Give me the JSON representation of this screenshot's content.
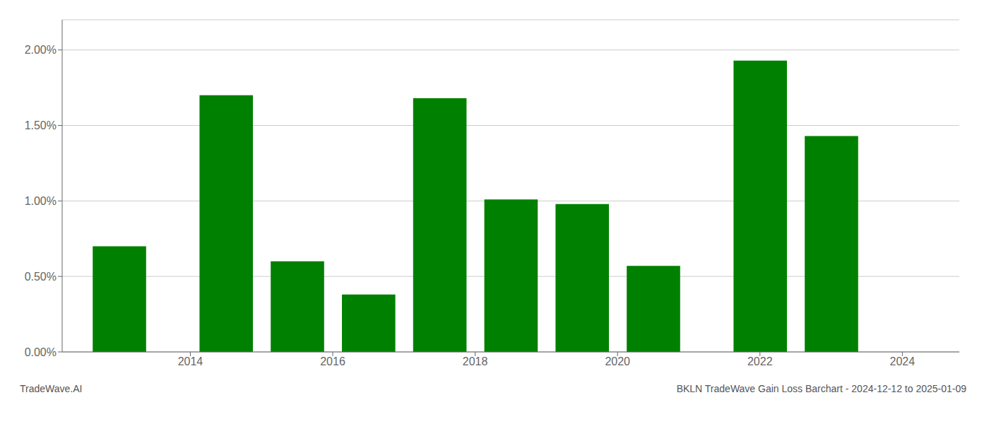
{
  "chart_data": {
    "type": "bar",
    "title": "BKLN TradeWave Gain Loss Barchart - 2024-12-12 to 2025-01-09",
    "annotations": [
      "TradeWave.AI"
    ],
    "x": [
      2013.0,
      2014.5,
      2015.5,
      2016.5,
      2017.5,
      2018.5,
      2019.5,
      2020.5,
      2022.0,
      2023.0
    ],
    "values": [
      0.007,
      0.017,
      0.006,
      0.0038,
      0.0168,
      0.0101,
      0.0098,
      0.0057,
      0.0193,
      0.0143
    ],
    "color": "#008000",
    "xlim": [
      2012.2,
      2024.8
    ],
    "xticks": [
      2014,
      2016,
      2018,
      2020,
      2022,
      2024
    ],
    "ylim": [
      0,
      0.022
    ],
    "yticks": [
      {
        "value": 0.0,
        "label": "0.00%"
      },
      {
        "value": 0.005,
        "label": "0.50%"
      },
      {
        "value": 0.01,
        "label": "1.00%"
      },
      {
        "value": 0.015,
        "label": "1.50%"
      },
      {
        "value": 0.02,
        "label": "2.00%"
      }
    ],
    "grid": true
  }
}
